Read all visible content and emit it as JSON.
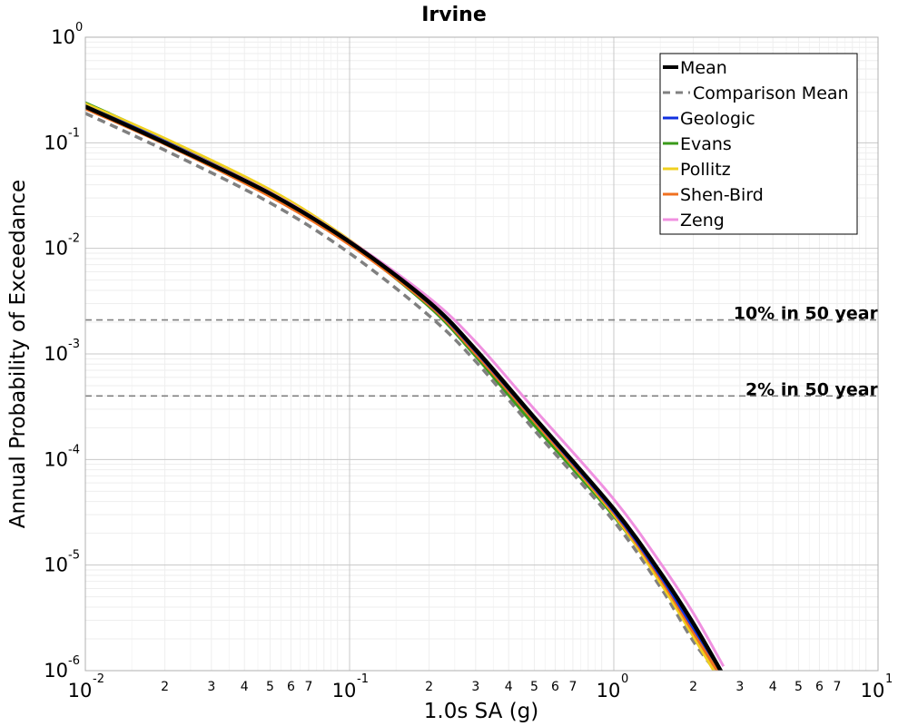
{
  "chart_data": {
    "type": "line",
    "title": "Irvine",
    "xlabel": "1.0s SA (g)",
    "ylabel": "Annual Probability of Exceedance",
    "xscale": "log",
    "yscale": "log",
    "xlim": [
      0.01,
      10
    ],
    "ylim": [
      1e-06,
      1
    ],
    "grid": true,
    "legend_position": "top-right",
    "x_major_ticks": [
      {
        "base": "10",
        "exp": "-2"
      },
      {
        "base": "10",
        "exp": "-1"
      },
      {
        "base": "10",
        "exp": "0"
      },
      {
        "base": "10",
        "exp": "1"
      }
    ],
    "y_major_ticks": [
      {
        "base": "10",
        "exp": "0"
      },
      {
        "base": "10",
        "exp": "-1"
      },
      {
        "base": "10",
        "exp": "-2"
      },
      {
        "base": "10",
        "exp": "-3"
      },
      {
        "base": "10",
        "exp": "-4"
      },
      {
        "base": "10",
        "exp": "-5"
      },
      {
        "base": "10",
        "exp": "-6"
      }
    ],
    "x_minor_labels": [
      "2",
      "3",
      "4",
      "5",
      "6",
      "7"
    ],
    "reference_lines": [
      {
        "label": "10% in 50 year",
        "y": 0.0021,
        "color": "#808080"
      },
      {
        "label": "2% in 50 year",
        "y": 0.0004,
        "color": "#808080"
      }
    ],
    "x": [
      0.01,
      0.02,
      0.05,
      0.1,
      0.2,
      0.3,
      0.5,
      1.0,
      1.5,
      2.0,
      2.6
    ],
    "series": [
      {
        "name": "Mean",
        "color": "#000000",
        "style": "solid",
        "width": 4.5,
        "values": [
          0.22,
          0.1,
          0.033,
          0.0115,
          0.0031,
          0.0011,
          0.00025,
          3.4e-05,
          8.5e-06,
          2.8e-06,
          9e-07
        ]
      },
      {
        "name": "Comparison Mean",
        "color": "#808080",
        "style": "dashed",
        "width": 3.5,
        "values": [
          0.19,
          0.085,
          0.027,
          0.009,
          0.0023,
          0.00085,
          0.00019,
          2.6e-05,
          6.2e-06,
          1.9e-06,
          8e-07
        ]
      },
      {
        "name": "Geologic",
        "color": "#1030e0",
        "style": "solid",
        "width": 2.5,
        "values": [
          0.225,
          0.104,
          0.034,
          0.0115,
          0.003,
          0.00105,
          0.00024,
          3.2e-05,
          7.8e-06,
          2.5e-06,
          9e-07
        ]
      },
      {
        "name": "Evans",
        "color": "#3a9a1a",
        "style": "solid",
        "width": 3,
        "values": [
          0.24,
          0.108,
          0.034,
          0.0112,
          0.0028,
          0.00095,
          0.00021,
          2.9e-05,
          7.2e-06,
          2.3e-06,
          8e-07
        ]
      },
      {
        "name": "Pollitz",
        "color": "#f0d020",
        "style": "solid",
        "width": 3,
        "values": [
          0.235,
          0.11,
          0.036,
          0.012,
          0.0031,
          0.00105,
          0.00023,
          3e-05,
          6.8e-06,
          2.1e-06,
          7e-07
        ]
      },
      {
        "name": "Shen-Bird",
        "color": "#f07020",
        "style": "solid",
        "width": 3,
        "values": [
          0.21,
          0.097,
          0.031,
          0.0108,
          0.0029,
          0.001,
          0.00023,
          3.1e-05,
          7.4e-06,
          2.3e-06,
          8e-07
        ]
      },
      {
        "name": "Zeng",
        "color": "#f090e0",
        "style": "solid",
        "width": 3,
        "values": [
          0.22,
          0.102,
          0.034,
          0.0118,
          0.0034,
          0.0013,
          0.0003,
          4.2e-05,
          1.05e-05,
          3.5e-06,
          1.1e-06
        ]
      }
    ]
  }
}
